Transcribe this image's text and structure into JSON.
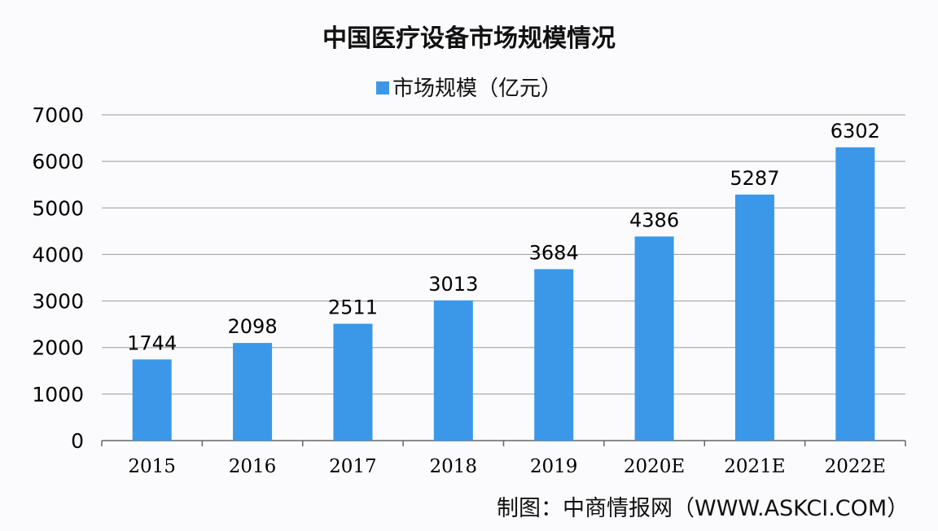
{
  "chart_data": {
    "type": "bar",
    "title": "中国医疗设备市场规模情况",
    "categories": [
      "2015",
      "2016",
      "2017",
      "2018",
      "2019",
      "2020E",
      "2021E",
      "2022E"
    ],
    "series": [
      {
        "name": "市场规模（亿元）",
        "values": [
          1744,
          2098,
          2511,
          3013,
          3684,
          4386,
          5287,
          6302
        ]
      }
    ],
    "ylim": [
      0,
      7000
    ],
    "yticks": [
      0,
      1000,
      2000,
      3000,
      4000,
      5000,
      6000,
      7000
    ],
    "grid": true,
    "legend": "top-center",
    "bar_color": "#3b98e9"
  },
  "source": "制图：中商情报网（WWW.ASKCI.COM）"
}
